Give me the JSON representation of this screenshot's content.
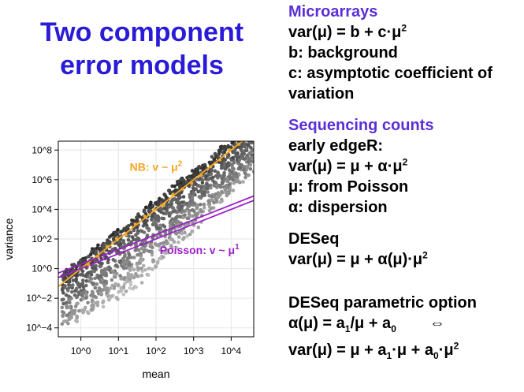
{
  "title": {
    "line1": "Two component",
    "line2": "error models"
  },
  "microarrays": {
    "heading": "Microarrays",
    "formula_pre": "var(μ) = b + c·μ",
    "formula_sup": "2",
    "b_desc": "b: background",
    "c_desc_1": "c: asymptotic coefficient of",
    "c_desc_2": "variation"
  },
  "sequencing": {
    "heading": "Sequencing counts",
    "edger": "early edgeR:",
    "edger_formula_pre": "var(μ) = μ + α·μ",
    "edger_formula_sup": "2",
    "mu_desc": "μ: from Poisson",
    "alpha_desc": "α: dispersion",
    "deseq": "DESeq",
    "deseq_formula_pre": "var(μ) = μ + α(μ)·μ",
    "deseq_formula_sup": "2",
    "param_title": "DESeq parametric option",
    "param_alpha_pre": "α(μ) = a",
    "param_alpha_sub1": "1",
    "param_alpha_mid": "/μ + a",
    "param_alpha_sub0": "0",
    "iff": "⇔",
    "param_var_pre": "var(μ) = μ + a",
    "param_var_sub1": "1",
    "param_var_mid": "·μ + a",
    "param_var_sub0": "0",
    "param_var_post": "·μ",
    "param_var_sup": "2"
  },
  "chart_data": {
    "type": "scatter",
    "xlabel": "mean",
    "ylabel": "variance",
    "x_scale": "log10",
    "y_scale": "log10",
    "xlim_log10": [
      -0.6,
      4.6
    ],
    "ylim_log10": [
      -4.6,
      8.6
    ],
    "x_tick_labels": [
      "10^0",
      "10^1",
      "10^2",
      "10^3",
      "10^4"
    ],
    "x_tick_log10": [
      0,
      1,
      2,
      3,
      4
    ],
    "y_tick_labels": [
      "10^−4",
      "10^−2",
      "10^0",
      "10^2",
      "10^4",
      "10^6",
      "10^8"
    ],
    "y_tick_log10": [
      -4,
      -2,
      0,
      2,
      4,
      6,
      8
    ],
    "annotations": [
      {
        "text_pre": "NB: v ~ μ",
        "text_sup": "2",
        "color": "#f5a623"
      },
      {
        "text_pre": "Poisson: v ~ μ",
        "text_sup": "1",
        "color": "#9b1fc8"
      }
    ],
    "series": [
      {
        "model": "NB",
        "slope": 2.0,
        "intercept": 0.0,
        "color": "#f5a623"
      },
      {
        "model": "Poisson",
        "slope": 1.0,
        "intercept": 0.0,
        "color": "#9b1fc8"
      },
      {
        "model": "Poisson",
        "slope": 1.0,
        "intercept": 0.3,
        "color": "#9b1fc8"
      }
    ],
    "grid": true
  }
}
